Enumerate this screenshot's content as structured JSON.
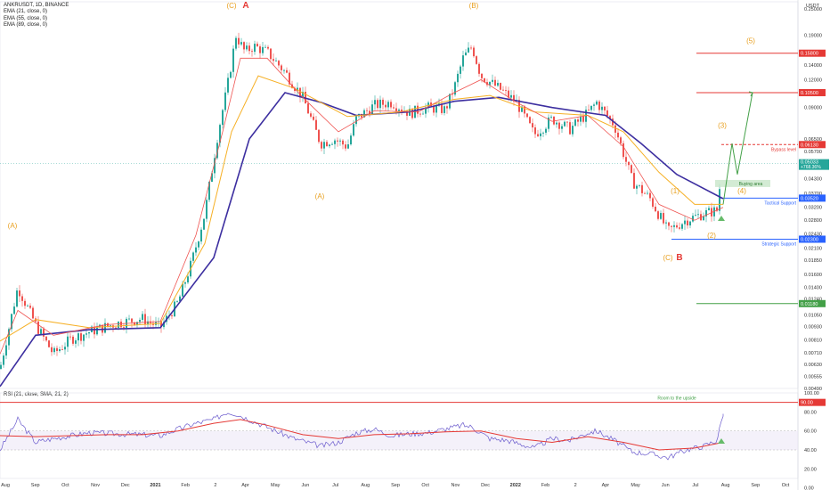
{
  "legend_main": [
    "ANKRUSDT, 1D, BINANCE",
    "EMA (21, close, 0)",
    "EMA (55, close, 0)",
    "EMA (89, close, 0)"
  ],
  "legend_rsi": "RSI (21, close, SMA, 21, 2)",
  "currency": "USDT",
  "colors": {
    "up": "#26a69a",
    "down": "#ef5350",
    "ema21": "#ef5350",
    "ema55": "#f6b026",
    "ema89": "#3d2fa0",
    "blue_level": "#2962ff",
    "red_level": "#e53935",
    "green_level": "#43a047",
    "rsi_line": "#6a5acd",
    "rsi_ma": "#e53935",
    "wave": "#e8a020"
  },
  "chart_data": [
    {
      "type": "line",
      "subtype": "candlestick",
      "title": "ANKRUSDT, 1D, BINANCE",
      "yscale": "log",
      "ylim": [
        0.0049,
        0.25
      ],
      "price_ticks": [
        "0.25000",
        "0.19000",
        "0.14000",
        "0.12000",
        "0.09000",
        "0.06500",
        "0.05700",
        "0.04300",
        "0.03700",
        "0.03200",
        "0.02800",
        "0.02430",
        "0.02100",
        "0.01850",
        "0.01600",
        "0.01400",
        "0.01240",
        "0.01050",
        "0.00930",
        "0.00810",
        "0.00710",
        "0.00630",
        "0.00555",
        "0.00490"
      ],
      "x_labels": [
        "Aug",
        "Sep",
        "Oct",
        "Nov",
        "Dec",
        "2021",
        "Feb",
        "2",
        "Apr",
        "May",
        "Jun",
        "Jul",
        "Aug",
        "Sep",
        "Oct",
        "Nov",
        "Dec",
        "2022",
        "Feb",
        "2",
        "Apr",
        "May",
        "Jun",
        "Jul",
        "Aug",
        "Sep",
        "Oct"
      ],
      "price_path": [
        [
          0,
          0.006
        ],
        [
          20,
          0.014
        ],
        [
          40,
          0.0095
        ],
        [
          60,
          0.007
        ],
        [
          80,
          0.0082
        ],
        [
          100,
          0.0088
        ],
        [
          130,
          0.0096
        ],
        [
          160,
          0.0101
        ],
        [
          180,
          0.0092
        ],
        [
          200,
          0.012
        ],
        [
          215,
          0.018
        ],
        [
          230,
          0.03
        ],
        [
          245,
          0.07
        ],
        [
          255,
          0.11
        ],
        [
          265,
          0.19
        ],
        [
          275,
          0.16
        ],
        [
          285,
          0.17
        ],
        [
          300,
          0.16
        ],
        [
          320,
          0.13
        ],
        [
          340,
          0.1
        ],
        [
          360,
          0.062
        ],
        [
          375,
          0.065
        ],
        [
          390,
          0.06
        ],
        [
          400,
          0.08
        ],
        [
          420,
          0.092
        ],
        [
          440,
          0.095
        ],
        [
          460,
          0.085
        ],
        [
          480,
          0.09
        ],
        [
          500,
          0.088
        ],
        [
          510,
          0.11
        ],
        [
          520,
          0.15
        ],
        [
          530,
          0.17
        ],
        [
          540,
          0.125
        ],
        [
          560,
          0.11
        ],
        [
          580,
          0.095
        ],
        [
          600,
          0.068
        ],
        [
          620,
          0.08
        ],
        [
          640,
          0.072
        ],
        [
          660,
          0.085
        ],
        [
          670,
          0.095
        ],
        [
          690,
          0.075
        ],
        [
          710,
          0.042
        ],
        [
          730,
          0.035
        ],
        [
          750,
          0.025
        ],
        [
          770,
          0.028
        ],
        [
          790,
          0.03
        ],
        [
          805,
          0.031
        ],
        [
          812,
          0.053
        ]
      ],
      "ema21_path": [
        [
          0,
          0.007
        ],
        [
          20,
          0.011
        ],
        [
          60,
          0.0085
        ],
        [
          120,
          0.0095
        ],
        [
          180,
          0.0098
        ],
        [
          220,
          0.024
        ],
        [
          250,
          0.07
        ],
        [
          270,
          0.15
        ],
        [
          300,
          0.15
        ],
        [
          340,
          0.1
        ],
        [
          380,
          0.07
        ],
        [
          420,
          0.087
        ],
        [
          470,
          0.086
        ],
        [
          510,
          0.105
        ],
        [
          540,
          0.12
        ],
        [
          580,
          0.095
        ],
        [
          620,
          0.078
        ],
        [
          660,
          0.083
        ],
        [
          700,
          0.06
        ],
        [
          740,
          0.033
        ],
        [
          780,
          0.028
        ],
        [
          812,
          0.032
        ]
      ],
      "ema55_path": [
        [
          0,
          0.008
        ],
        [
          40,
          0.01
        ],
        [
          100,
          0.0092
        ],
        [
          180,
          0.0096
        ],
        [
          230,
          0.022
        ],
        [
          260,
          0.07
        ],
        [
          290,
          0.125
        ],
        [
          330,
          0.11
        ],
        [
          390,
          0.082
        ],
        [
          450,
          0.086
        ],
        [
          510,
          0.098
        ],
        [
          550,
          0.102
        ],
        [
          600,
          0.086
        ],
        [
          660,
          0.083
        ],
        [
          700,
          0.07
        ],
        [
          740,
          0.046
        ],
        [
          780,
          0.033
        ],
        [
          812,
          0.033
        ]
      ],
      "ema89_path": [
        [
          0,
          0.005
        ],
        [
          40,
          0.0085
        ],
        [
          100,
          0.009
        ],
        [
          180,
          0.0092
        ],
        [
          240,
          0.019
        ],
        [
          280,
          0.065
        ],
        [
          320,
          0.105
        ],
        [
          360,
          0.095
        ],
        [
          400,
          0.083
        ],
        [
          460,
          0.086
        ],
        [
          510,
          0.096
        ],
        [
          560,
          0.1
        ],
        [
          620,
          0.09
        ],
        [
          680,
          0.083
        ],
        [
          720,
          0.062
        ],
        [
          760,
          0.045
        ],
        [
          812,
          0.035
        ]
      ],
      "projection_path": [
        [
          812,
          0.033
        ],
        [
          822,
          0.062
        ],
        [
          828,
          0.045
        ],
        [
          845,
          0.105
        ]
      ],
      "levels": [
        {
          "value": 0.158,
          "label": "0.15800",
          "color": "#e53935",
          "style": "solid",
          "text": ""
        },
        {
          "value": 0.105,
          "label": "0.10500",
          "color": "#e53935",
          "style": "solid",
          "text": ""
        },
        {
          "value": 0.0613,
          "label": "0.06130",
          "color": "#e53935",
          "style": "dashed",
          "text": "Bypass level"
        },
        {
          "value": 0.0352,
          "label": "0.03520",
          "color": "#2962ff",
          "style": "solid",
          "text": "Tactical Support"
        },
        {
          "value": 0.023,
          "label": "0.02300",
          "color": "#2962ff",
          "style": "solid",
          "text": "Strategic Support"
        },
        {
          "value": 0.0118,
          "label": "0.01180",
          "color": "#43a047",
          "style": "solid",
          "text": ""
        }
      ],
      "current_price": {
        "value": "0.05033",
        "change": "+768.36%"
      },
      "buying_area": {
        "label": "Buying area",
        "low": 0.0395,
        "high": 0.0425
      },
      "waves": [
        {
          "text": "(C)",
          "x": 260,
          "y": 0.26,
          "red": false
        },
        {
          "text": "A",
          "x": 276,
          "y": 0.26,
          "red": true
        },
        {
          "text": "(B)",
          "x": 532,
          "y": 0.26,
          "red": false
        },
        {
          "text": "(A)",
          "x": 14,
          "y": 0.0265,
          "red": false
        },
        {
          "text": "(A)",
          "x": 359,
          "y": 0.036,
          "red": false
        },
        {
          "text": "(C)",
          "x": 750,
          "y": 0.019,
          "red": false
        },
        {
          "text": "B",
          "x": 763,
          "y": 0.019,
          "red": true
        },
        {
          "text": "(5)",
          "x": 843,
          "y": 0.18,
          "red": false
        },
        {
          "text": "(3)",
          "x": 811,
          "y": 0.075,
          "red": false
        },
        {
          "text": "(4)",
          "x": 833,
          "y": 0.038,
          "red": false
        },
        {
          "text": "(1)",
          "x": 758,
          "y": 0.038,
          "red": false
        },
        {
          "text": "(2)",
          "x": 799,
          "y": 0.024,
          "red": false
        }
      ]
    },
    {
      "type": "line",
      "title": "RSI (21, close, SMA, 21, 2)",
      "ylim": [
        10,
        100
      ],
      "y_ticks": [
        "100.00",
        "80.00",
        "60.00",
        "40.00",
        "20.00",
        "0.00"
      ],
      "level": {
        "value": 90,
        "label": "90.00",
        "text": "Room to the upside"
      },
      "band": [
        40,
        60
      ],
      "rsi_path": [
        [
          0,
          40
        ],
        [
          20,
          72
        ],
        [
          40,
          48
        ],
        [
          60,
          52
        ],
        [
          80,
          55
        ],
        [
          100,
          58
        ],
        [
          130,
          57
        ],
        [
          160,
          56
        ],
        [
          180,
          55
        ],
        [
          200,
          62
        ],
        [
          220,
          68
        ],
        [
          240,
          72
        ],
        [
          255,
          80
        ],
        [
          265,
          78
        ],
        [
          280,
          72
        ],
        [
          300,
          64
        ],
        [
          330,
          52
        ],
        [
          360,
          44
        ],
        [
          380,
          48
        ],
        [
          400,
          58
        ],
        [
          420,
          62
        ],
        [
          440,
          55
        ],
        [
          460,
          57
        ],
        [
          480,
          58
        ],
        [
          500,
          62
        ],
        [
          520,
          66
        ],
        [
          530,
          64
        ],
        [
          550,
          52
        ],
        [
          570,
          50
        ],
        [
          600,
          42
        ],
        [
          620,
          52
        ],
        [
          640,
          50
        ],
        [
          660,
          58
        ],
        [
          670,
          60
        ],
        [
          690,
          50
        ],
        [
          710,
          38
        ],
        [
          730,
          36
        ],
        [
          750,
          32
        ],
        [
          770,
          40
        ],
        [
          790,
          44
        ],
        [
          805,
          50
        ],
        [
          812,
          78
        ]
      ],
      "rsi_ma_path": [
        [
          0,
          55
        ],
        [
          40,
          54
        ],
        [
          80,
          55
        ],
        [
          120,
          56
        ],
        [
          160,
          56
        ],
        [
          200,
          60
        ],
        [
          240,
          68
        ],
        [
          270,
          72
        ],
        [
          300,
          66
        ],
        [
          340,
          56
        ],
        [
          380,
          52
        ],
        [
          420,
          56
        ],
        [
          460,
          57
        ],
        [
          500,
          59
        ],
        [
          540,
          60
        ],
        [
          580,
          52
        ],
        [
          620,
          48
        ],
        [
          660,
          54
        ],
        [
          700,
          48
        ],
        [
          740,
          40
        ],
        [
          780,
          42
        ],
        [
          812,
          48
        ]
      ]
    }
  ]
}
